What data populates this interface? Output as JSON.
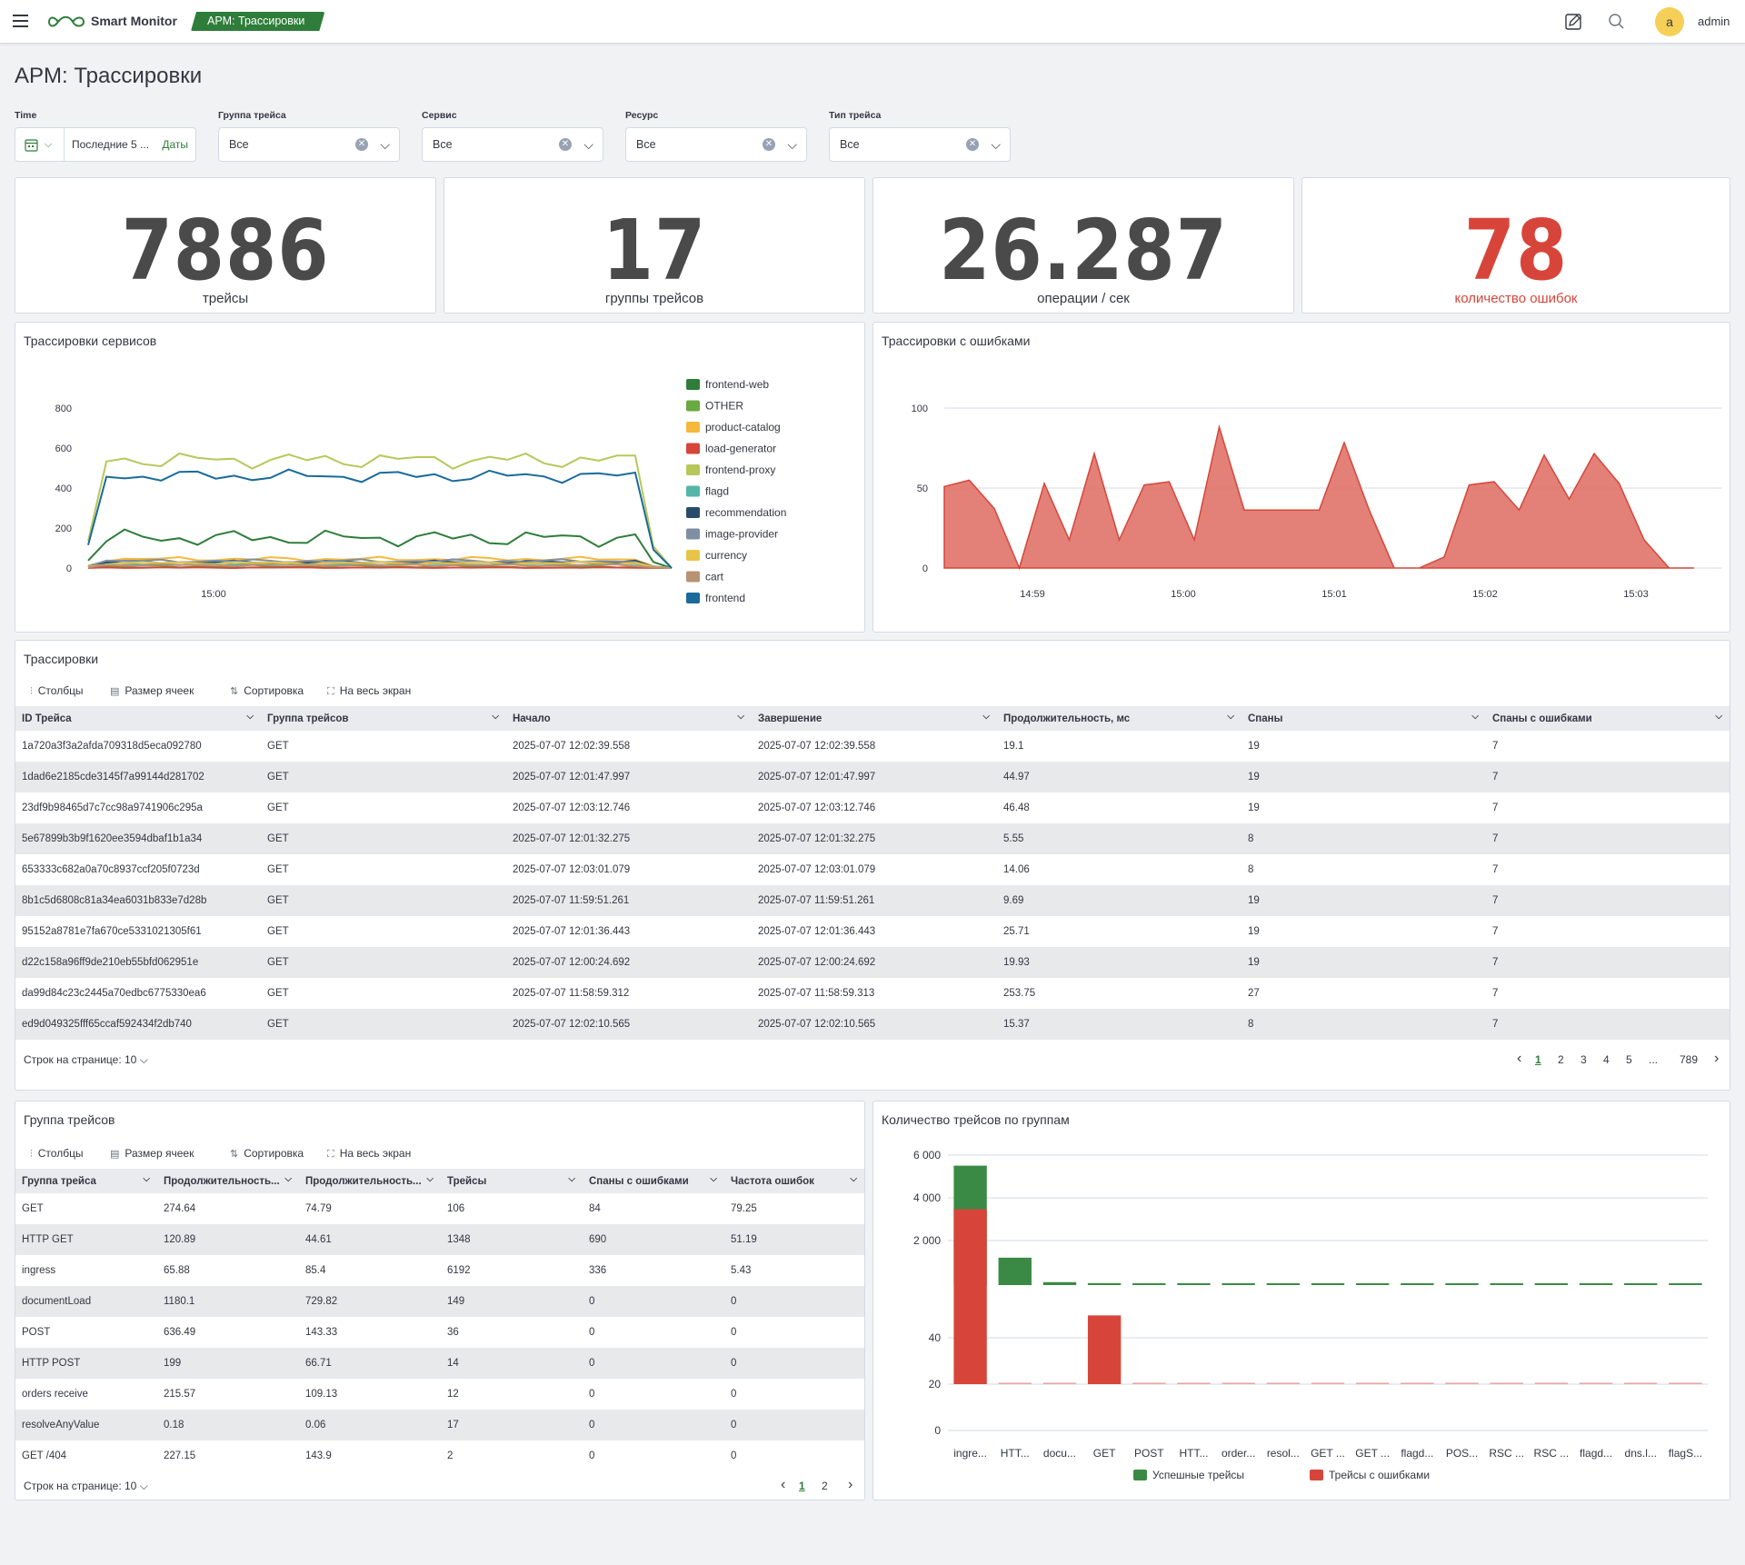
{
  "header": {
    "app_name": "Smart Monitor",
    "breadcrumb": "APM: Трассировки",
    "user_initial": "a",
    "user_name": "admin"
  },
  "page": {
    "title": "APM: Трассировки"
  },
  "filters": {
    "time": {
      "label": "Time",
      "value": "Последние 5 ...",
      "dates_link": "Даты"
    },
    "trace_group": {
      "label": "Группа трейса",
      "value": "Все"
    },
    "service": {
      "label": "Сервис",
      "value": "Все"
    },
    "resource": {
      "label": "Ресурс",
      "value": "Все"
    },
    "trace_type": {
      "label": "Тип трейса",
      "value": "Все"
    }
  },
  "metrics": [
    {
      "value": "7886",
      "label": "трейсы",
      "color": "#4a4a4a"
    },
    {
      "value": "17",
      "label": "группы трейсов",
      "color": "#4a4a4a"
    },
    {
      "value": "26.287",
      "label": "операции / сек",
      "color": "#4a4a4a"
    },
    {
      "value": "78",
      "label": "количество ошибок",
      "color": "#d7453a"
    }
  ],
  "services_chart": {
    "title": "Трассировки сервисов",
    "yticks": [
      "800",
      "600",
      "400",
      "200",
      "0"
    ],
    "xtick": "15:00",
    "legend": [
      {
        "name": "frontend-web",
        "color": "#2e7d3a"
      },
      {
        "name": "OTHER",
        "color": "#6aa842"
      },
      {
        "name": "product-catalog",
        "color": "#f5b83d"
      },
      {
        "name": "load-generator",
        "color": "#d7453a"
      },
      {
        "name": "frontend-proxy",
        "color": "#b8c75a"
      },
      {
        "name": "flagd",
        "color": "#55b5a6"
      },
      {
        "name": "recommendation",
        "color": "#2a4a6b"
      },
      {
        "name": "image-provider",
        "color": "#7e8fa3"
      },
      {
        "name": "currency",
        "color": "#e8c547"
      },
      {
        "name": "cart",
        "color": "#b89373"
      },
      {
        "name": "frontend",
        "color": "#1a6b9a"
      }
    ]
  },
  "errors_chart": {
    "title": "Трассировки с ошибками",
    "yticks": [
      "100",
      "50",
      "0"
    ],
    "xticks": [
      "14:59",
      "15:00",
      "15:01",
      "15:02",
      "15:03"
    ],
    "color": "#d7453a"
  },
  "traces": {
    "title": "Трассировки",
    "toolbar": {
      "columns": "Столбцы",
      "cell_size": "Размер ячеек",
      "sort": "Сортировка",
      "fullscreen": "На весь экран"
    },
    "columns": [
      "ID Трейса",
      "Группа трейсов",
      "Начало",
      "Завершение",
      "Продолжительность, мс",
      "Спаны",
      "Спаны с ошибками"
    ],
    "rows": [
      [
        "1a720a3f3a2afda709318d5eca092780",
        "GET",
        "2025-07-07 12:02:39.558",
        "2025-07-07 12:02:39.558",
        "19.1",
        "19",
        "7"
      ],
      [
        "1dad6e2185cde3145f7a99144d281702",
        "GET",
        "2025-07-07 12:01:47.997",
        "2025-07-07 12:01:47.997",
        "44.97",
        "19",
        "7"
      ],
      [
        "23df9b98465d7c7cc98a9741906c295a",
        "GET",
        "2025-07-07 12:03:12.746",
        "2025-07-07 12:03:12.746",
        "46.48",
        "19",
        "7"
      ],
      [
        "5e67899b3b9f1620ee3594dbaf1b1a34",
        "GET",
        "2025-07-07 12:01:32.275",
        "2025-07-07 12:01:32.275",
        "5.55",
        "8",
        "7"
      ],
      [
        "653333c682a0a70c8937ccf205f0723d",
        "GET",
        "2025-07-07 12:03:01.079",
        "2025-07-07 12:03:01.079",
        "14.06",
        "8",
        "7"
      ],
      [
        "8b1c5d6808c81a34ea6031b833e7d28b",
        "GET",
        "2025-07-07 11:59:51.261",
        "2025-07-07 11:59:51.261",
        "9.69",
        "19",
        "7"
      ],
      [
        "95152a8781e7fa670ce5331021305f61",
        "GET",
        "2025-07-07 12:01:36.443",
        "2025-07-07 12:01:36.443",
        "25.71",
        "19",
        "7"
      ],
      [
        "d22c158a96ff9de210eb55bfd062951e",
        "GET",
        "2025-07-07 12:00:24.692",
        "2025-07-07 12:00:24.692",
        "19.93",
        "19",
        "7"
      ],
      [
        "da99d84c23c2445a70edbc6775330ea6",
        "GET",
        "2025-07-07 11:58:59.312",
        "2025-07-07 11:58:59.313",
        "253.75",
        "27",
        "7"
      ],
      [
        "ed9d049325fff65ccaf592434f2db740",
        "GET",
        "2025-07-07 12:02:10.565",
        "2025-07-07 12:02:10.565",
        "15.37",
        "8",
        "7"
      ]
    ],
    "rows_per_page": "Строк на странице: 10",
    "pages": [
      "1",
      "2",
      "3",
      "4",
      "5",
      "...",
      "789"
    ]
  },
  "groups": {
    "title": "Группа трейсов",
    "toolbar": {
      "columns": "Столбцы",
      "cell_size": "Размер ячеек",
      "sort": "Сортировка",
      "fullscreen": "На весь экран"
    },
    "columns": [
      "Группа трейса",
      "Продолжительность...",
      "Продолжительность...",
      "Трейсы",
      "Спаны с ошибками",
      "Частота ошибок"
    ],
    "rows": [
      [
        "GET",
        "274.64",
        "74.79",
        "106",
        "84",
        "79.25"
      ],
      [
        "HTTP GET",
        "120.89",
        "44.61",
        "1348",
        "690",
        "51.19"
      ],
      [
        "ingress",
        "65.88",
        "85.4",
        "6192",
        "336",
        "5.43"
      ],
      [
        "documentLoad",
        "1180.1",
        "729.82",
        "149",
        "0",
        "0"
      ],
      [
        "POST",
        "636.49",
        "143.33",
        "36",
        "0",
        "0"
      ],
      [
        "HTTP POST",
        "199",
        "66.71",
        "14",
        "0",
        "0"
      ],
      [
        "orders receive",
        "215.57",
        "109.13",
        "12",
        "0",
        "0"
      ],
      [
        "resolveAnyValue",
        "0.18",
        "0.06",
        "17",
        "0",
        "0"
      ],
      [
        "GET /404",
        "227.15",
        "143.9",
        "2",
        "0",
        "0"
      ]
    ],
    "rows_per_page": "Строк на странице: 10",
    "pages": [
      "1",
      "2"
    ]
  },
  "chart_data": [
    {
      "type": "bar",
      "title": "Количество трейсов по группам",
      "categories": [
        "ingre...",
        "HTT...",
        "docu...",
        "GET",
        "POST",
        "HTT...",
        "order...",
        "resol...",
        "GET ...",
        "GET ...",
        "flagd...",
        "POS...",
        "RSC ...",
        "RSC ...",
        "flagd...",
        "dns.l...",
        "flagS..."
      ],
      "series": [
        {
          "name": "Успешные трейсы",
          "color": "#3a8a45",
          "values": [
            6100,
            1400,
            150,
            100,
            36,
            14,
            12,
            17,
            10,
            8,
            6,
            5,
            4,
            4,
            3,
            3,
            2
          ]
        },
        {
          "name": "Трейсы с ошибками",
          "color": "#d7453a",
          "values": [
            56,
            0,
            0,
            22,
            0,
            0,
            0,
            0,
            0,
            0,
            0,
            0,
            0,
            0,
            0,
            0,
            0
          ]
        }
      ],
      "yticks_top": [
        "6 000",
        "4 000",
        "2 000"
      ],
      "yticks_bottom": [
        "40",
        "20",
        "0"
      ]
    }
  ]
}
